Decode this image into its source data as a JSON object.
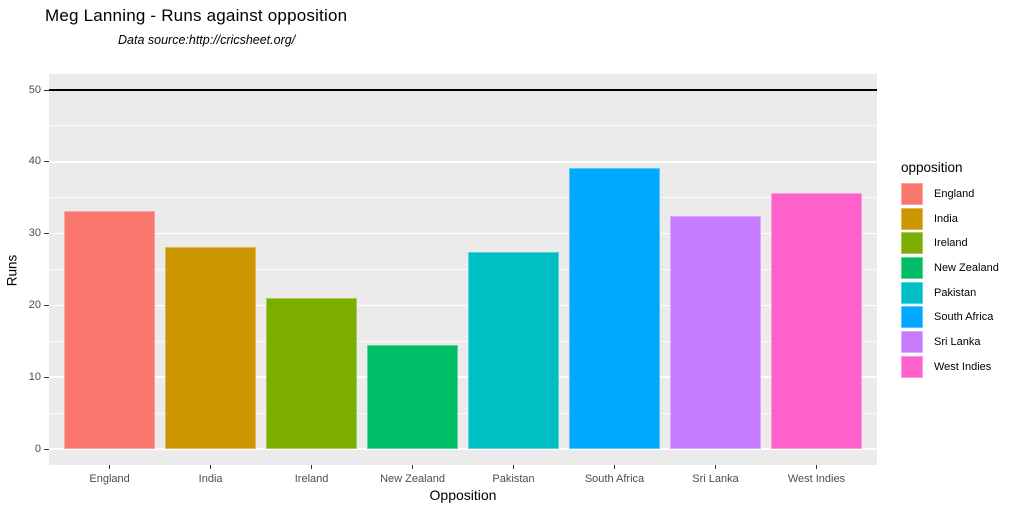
{
  "header": {
    "title": "Meg Lanning - Runs against opposition",
    "subtitle": "Data source:http://cricsheet.org/"
  },
  "chart_data": {
    "type": "bar",
    "title": "Meg Lanning - Runs against opposition",
    "subtitle": "Data source:http://cricsheet.org/",
    "xlabel": "Opposition",
    "ylabel": "Runs",
    "categories": [
      "England",
      "India",
      "Ireland",
      "New Zealand",
      "Pakistan",
      "South Africa",
      "Sri Lanka",
      "West Indies"
    ],
    "values": [
      33.1,
      28.2,
      21,
      14.5,
      27.5,
      39.2,
      32.5,
      35.7
    ],
    "colors": [
      "#F8766D",
      "#CD9600",
      "#7CAE00",
      "#00BE67",
      "#00BFC4",
      "#00A9FF",
      "#C77CFF",
      "#FF61CC"
    ],
    "ylim": [
      0,
      50
    ],
    "yticks_major": [
      0,
      10,
      20,
      30,
      40,
      50
    ],
    "yticks_minor": [
      5,
      15,
      25,
      35,
      45
    ],
    "hline": 50,
    "grid": "on",
    "panel_background": "#EBEBEB",
    "gridline_color": "#FFFFFF",
    "hline_color": "#000000",
    "axis_text_color": "#4D4D4D",
    "legend": {
      "title": "opposition",
      "position": "right",
      "entries": [
        "England",
        "India",
        "Ireland",
        "New Zealand",
        "Pakistan",
        "South Africa",
        "Sri Lanka",
        "West Indies"
      ]
    }
  }
}
